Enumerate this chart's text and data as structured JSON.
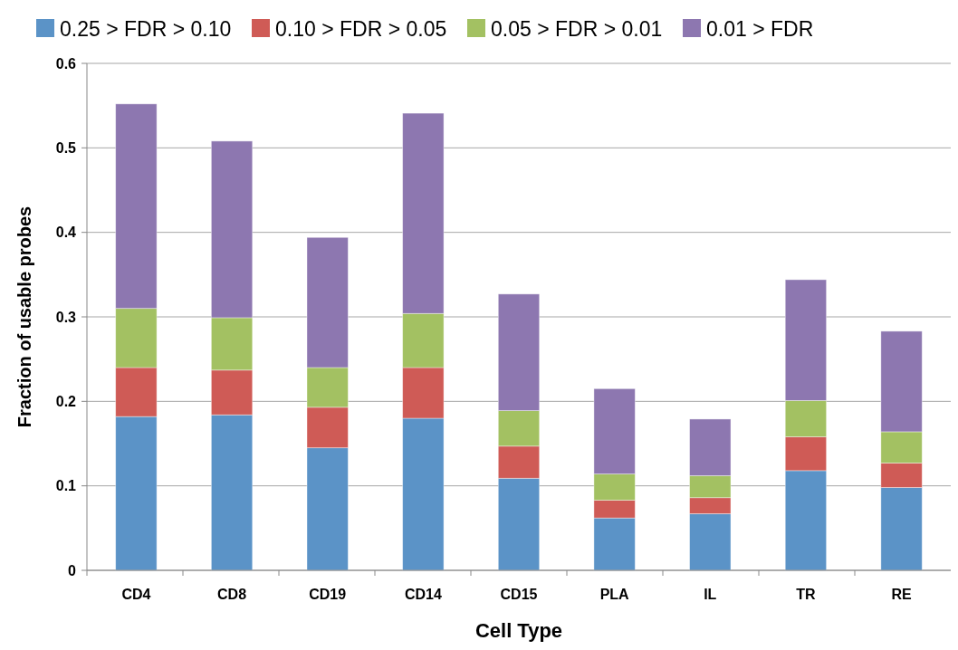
{
  "chart_data": {
    "type": "bar",
    "stacked": true,
    "xlabel": "Cell Type",
    "ylabel": "Fraction of usable probes",
    "categories": [
      "CD4",
      "CD8",
      "CD19",
      "CD14",
      "CD15",
      "PLA",
      "IL",
      "TR",
      "RE"
    ],
    "series": [
      {
        "name": "0.25 > FDR > 0.10",
        "color": "#5b93c7",
        "values": [
          0.182,
          0.184,
          0.145,
          0.18,
          0.109,
          0.062,
          0.067,
          0.118,
          0.098
        ]
      },
      {
        "name": "0.10 > FDR > 0.05",
        "color": "#cf5b56",
        "values": [
          0.058,
          0.053,
          0.048,
          0.06,
          0.038,
          0.021,
          0.019,
          0.04,
          0.029
        ]
      },
      {
        "name": "0.05 > FDR > 0.01",
        "color": "#a3c162",
        "values": [
          0.07,
          0.062,
          0.047,
          0.064,
          0.042,
          0.031,
          0.026,
          0.043,
          0.037
        ]
      },
      {
        "name": "0.01 > FDR",
        "color": "#8d77b0",
        "values": [
          0.242,
          0.209,
          0.154,
          0.237,
          0.138,
          0.101,
          0.067,
          0.143,
          0.119
        ]
      }
    ],
    "ylim": [
      0,
      0.6
    ],
    "yticks": [
      0,
      0.1,
      0.2,
      0.3,
      0.4,
      0.5,
      0.6
    ],
    "grid": "y",
    "legend": "top"
  }
}
